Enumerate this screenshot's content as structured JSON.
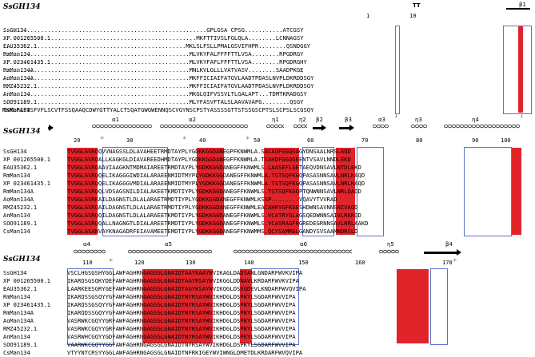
{
  "alignment_title": "SsGH134",
  "sequence_names": [
    "SsGH134",
    "XP 001265500.1",
    "EAU35362.1",
    "RmMan134",
    "XP 023461435.1",
    "RmMan134A",
    "AoMan134A",
    "RMZ45232.1",
    "AnMan134",
    "SOO91189.1",
    "CsMan134"
  ],
  "block1": {
    "ruler": [
      "1",
      "10"
    ],
    "ss": [
      "TT",
      "β1"
    ],
    "rows": [
      "...........................................................GPLGSA CPSG...........ATCGSY",
      "........................................................MKFTTIVSLFGLQLA........LCNNAGSY",
      ".....................................................MKLSLFSLLPMALGSVIFHPR........QSNDGGY",
      "......................................................MLVKYFALFFFFTTLVSA........RPGDRGY",
      "......................................................MLVKYFAFLFFFTTLVSA........RPGDRGHY",
      "......................................................MNLKVLGLLLVATVASV........SAADPKGE",
      "......................................................MKFFICIAIFATGVLAADTPDASLNVPLDKRDDSGY",
      "......................................................MKFFICIAIFATGVLAADTPDASLNVPLDKRDDSGY",
      "......................................................MKGLQIFVSSVLTLGALAPT...TDMTKRADGSY",
      "......................................................MLYFASVFTALSLAAVAVAPG........QSGY",
      "MKKLFAFISFVFLSCVTFSSQAAQCDWYGTTYALCTSQATGWGWENNQSCVGYNSCPSTYASSSSGTTSTSSGSCPTSLSCPSLSCGSQY"
    ],
    "green_marks": [
      "1",
      "1"
    ]
  },
  "block2": {
    "ruler": [
      "20",
      "30",
      "40",
      "50",
      "60",
      "70",
      "80",
      "90",
      "100"
    ],
    "ss": [
      "α1",
      "α2",
      "η1",
      "η2",
      "β2",
      "β3",
      "α3",
      "η3",
      "η4"
    ],
    "rows": [
      "TVGGLGSRQQVVNAGSSLDLAVAHEETRMDTAYPLYGDKKGGDANEGPFKNWMLA.SACAQFGGQGAGYDNSAALNRSLGQD",
      "TVGGLGSRQALLKAGKGLDIAVAREEDHMDTAYPLYGDKKGGDANEGFFKNWMLA.TSAHDFGGQGEENTVSAVLNNDLEKD",
      "TVGGLGSRQAAVIAAGKNTMDMAIAREETRMDTAYPLYGDKKGGDANEGFFKNWMLS.LAASEFLGETAEQVDNSAVLNTDLEKD",
      "TVGGLGSRQQELIKAGGGIWDIALARAEENMIDTMYPLYGDKKGGDANEGFFKNWMLA.TSTSQFKGQPASASNNSAVLNRLKAQD",
      "TVGGLGSRQQELIKAGGGVMDIALARAEENMIDTMYPLYGDKKGGDANEGFFKNWMLA.TSTSQFKGQPASASNNSAVLNRLKAQD",
      "TVGGLGSRQQLVDSAGSNILDIALAKEETKMDTIYPLYGDKKGGDANEGFFKNWMLS.TSTSQFKGQPTQNWNNSAVLNRLQAQD",
      "TVGGLGSRKAILDAGNSTLDLALARAETRMDTIYPLYGDKKGGDANEGFFKNWMLKSSP........VQAVYTVVRAD",
      "TVGGLGSRQAILDAGNSTLDLALARAETRMDTIYPLYGDKKGGDANEGFFKNWMLEACAHRYGFKGESHDWNSAVNNSNIVAGD",
      "TVGGLGSRQQILDAGNSTLDLALARAEETKMDTIYPLYGDKKGGDANEGFFKNWMLS.VCATRYGLAGSQEDWNNSAIVLRKKQD",
      "TVGGLGSRQQALLNAGNGTLDIALAREETRMDTIYPLYGDKKGGDANEGFFKNWMLS.VCASRAGFRGREDEGRNNSAVLNRLAAKD",
      "TVGGLGSANVAYKNAGADRFEIAVAMEETEMDTIYPLYGDKKGGDANEGFFKNWMMS.QCYSAMRGLGANDYSVSAAMNDRSLD"
    ],
    "stars": [
      "*",
      "*",
      "*"
    ]
  },
  "block3": {
    "ruler": [
      "110",
      "120",
      "130",
      "140",
      "150",
      "160",
      "170"
    ],
    "ss": [
      "α4",
      "α5",
      "α6",
      "η5",
      "β4"
    ],
    "rows": [
      "VSCLHGSGSHYGGLAWFAGHRNGAGSGLGNAIDTAAYKAAYWVIKAGLDADSANLGNDARFWVKVIPA",
      "IKARQSGSQKYDEFAWFAGHRNGAGSGLGNAIDTAGYRSAYWVIKGGLDDNAVLKRDARFWVKVIPA",
      "LAARKEESGRYGEFAWFAGHRNGAGSGLGNAIDTAGYKSAYWVIKQGLDSEGDEVLKNDARFWVQVIPA",
      "IKARQSSGSQYYGFAWFAGHRNGAGSGLGNAIDTNYRSAYWVIKHDGLDSPKYLSGDARFWVVIPA",
      "IKARQSSGSQYYGFAWFAGHRNGAGSGLGNAIDTNYRSAYWVIKHDGLDSPKYLSGDARFWVVIPA",
      "IKARQDSSGQYYGFAWFAGHRNGAGSGLGNAIDTNYRSAYWVIKHDGLDSPKYLSGDARFWVVIPA",
      "VASRWKCGQYYGRFAWFAGHRNGAGSGLGNAIDTNYRSAYWVIKHDGLDSPKYLSGDARFWVVIPA",
      "VASRWKCGQYYGRFAWFAGHRNGAGSGLGNAIDTNYRSAYWVIKHDGLDSPKYLSGDARFWVVIPA",
      "VASRWHCGQYYGDFAWFAGHRNGAGSGLGNAIDTNYRSAYWVIKHDGLDSPKYLSGDARFWVVIPA",
      "VAARWKCGQYYGGFAWFAGHRNGAGSGLGNAIDTNYRSAYWVIKHDGLDSPKYLSGDARFWVVIPA",
      "VTYYNTCRSYYGGLAWFAGHRNGAGSGLGNAIDTNFRKIGEYWVIWNGLDMETDLKRDARFWVQVIPA"
    ],
    "stars": [
      "*",
      "*"
    ]
  },
  "colors": {
    "identity_red": "#e0242a",
    "similarity_box": "#5d73c8",
    "green_marker": "#3a9a2a"
  }
}
